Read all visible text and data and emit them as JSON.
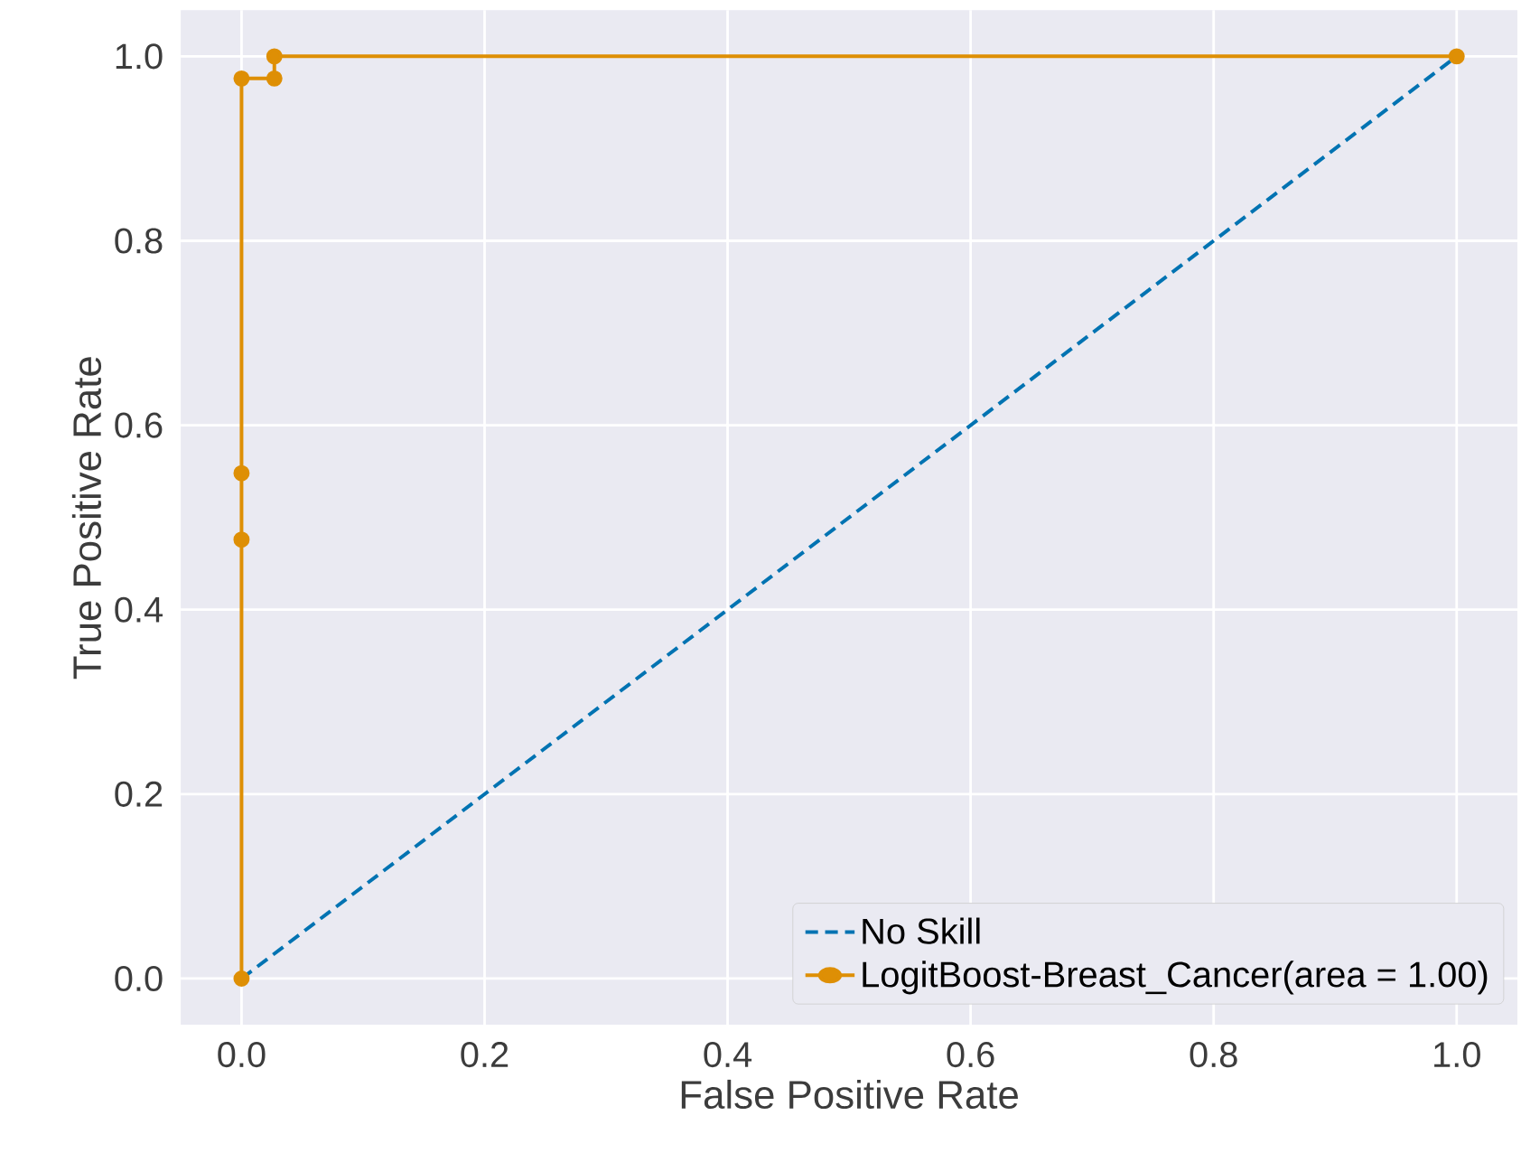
{
  "chart_data": {
    "type": "line",
    "xlabel": "False Positive Rate",
    "ylabel": "True Positive Rate",
    "series": [
      {
        "name": "No Skill",
        "color": "#0173b2",
        "x": [
          0,
          1
        ],
        "values": [
          0,
          1
        ],
        "line_style": "dashed",
        "marker": "none"
      },
      {
        "name": "LogitBoost-Breast_Cancer(area = 1.00)",
        "color": "#de8f05",
        "x": [
          0,
          0,
          0,
          0,
          0.027,
          0.027,
          1
        ],
        "values": [
          0,
          0.476,
          0.548,
          0.976,
          0.976,
          1.0,
          1.0
        ],
        "line_style": "solid",
        "marker": "circle"
      }
    ],
    "xlim": [
      -0.05,
      1.05
    ],
    "ylim": [
      -0.05,
      1.05
    ],
    "xticks": [
      {
        "value": 0,
        "label": "0.0"
      },
      0.2,
      0.4,
      0.6,
      0.8,
      {
        "value": 1,
        "label": "1.0"
      }
    ],
    "yticks": [
      {
        "value": 0,
        "label": "0.0"
      },
      0.2,
      0.4,
      0.6,
      0.8,
      {
        "value": 1,
        "label": "1.0"
      }
    ],
    "grid": true,
    "legend": "bottom right"
  }
}
